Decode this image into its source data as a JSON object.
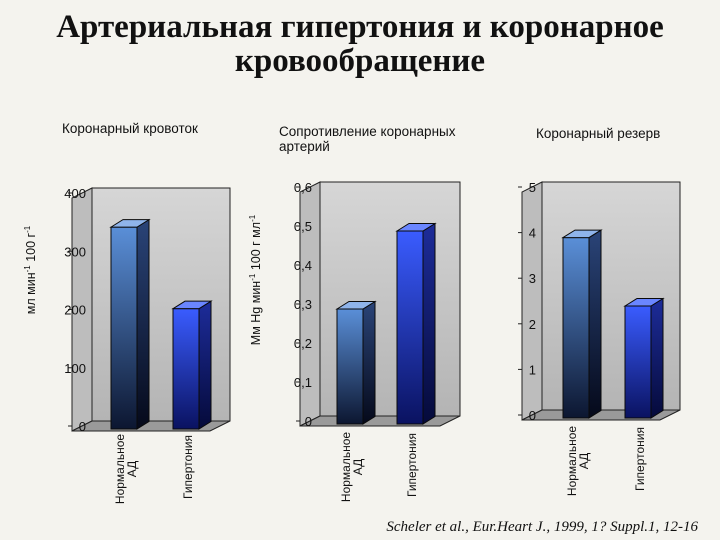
{
  "page": {
    "title_line1": "Артериальная гипертония и коронарное",
    "title_line2": "кровообращение",
    "citation": "Scheler et al., Eur.Heart J., 1999, 1? Suppl.1, 12-16"
  },
  "colors": {
    "background": "#f4f3ee",
    "plot_back": "#c8c8c8",
    "plot_floor": "#9a9a9a",
    "bar_normal": "#4a78c0",
    "bar_hyper": "#2f4ff5"
  },
  "chart_data": [
    {
      "type": "bar",
      "title": "Коронарный кровоток",
      "ylabel": "мл мин-1 100 г-1",
      "ylabel_parts": [
        "мл мин",
        "-1",
        " 100 г",
        "-1"
      ],
      "categories": [
        "Нормальное АД",
        "Гипертония"
      ],
      "category_label_lines": [
        [
          "Нормальное",
          "АД"
        ],
        [
          "Гипертония"
        ]
      ],
      "values": [
        350,
        210
      ],
      "ylim": [
        0,
        400
      ],
      "yticks": [
        0,
        100,
        200,
        300,
        400
      ],
      "yticklabels": [
        "0",
        "100",
        "200",
        "300",
        "400"
      ],
      "grid": false,
      "legend": "none"
    },
    {
      "type": "bar",
      "title": "Сопротивление коронарных артерий",
      "title_lines": [
        "Сопротивление коронарных",
        "артерий"
      ],
      "ylabel": "Мм Hg мин-1 100 г мл-1",
      "ylabel_parts": [
        "Мм Hg мин",
        "-1",
        " 100 г мл",
        "-1"
      ],
      "categories": [
        "Нормальное АД",
        "Гипертония"
      ],
      "category_label_lines": [
        [
          "Нормальное",
          "АД"
        ],
        [
          "Гипертония"
        ]
      ],
      "values": [
        0.3,
        0.5
      ],
      "ylim": [
        0,
        0.6
      ],
      "yticks": [
        0,
        0.1,
        0.2,
        0.3,
        0.4,
        0.5,
        0.6
      ],
      "yticklabels": [
        "0",
        "0,1",
        "0,2",
        "0,3",
        "0,4",
        "0,5",
        "0,6"
      ],
      "grid": false,
      "legend": "none"
    },
    {
      "type": "bar",
      "title": "Коронарный резерв",
      "ylabel": "",
      "categories": [
        "Нормальное АД",
        "Гипертония"
      ],
      "category_label_lines": [
        [
          "Нормальное",
          "АД"
        ],
        [
          "Гипертония"
        ]
      ],
      "values": [
        4.0,
        2.5
      ],
      "ylim": [
        0,
        5
      ],
      "yticks": [
        0,
        1,
        2,
        3,
        4,
        5
      ],
      "yticklabels": [
        "0",
        "1",
        "2",
        "3",
        "4",
        "5"
      ],
      "grid": false,
      "legend": "none"
    }
  ]
}
